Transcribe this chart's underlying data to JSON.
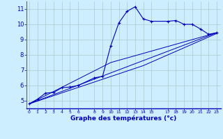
{
  "title": "Graphe des températures (°c)",
  "bg_color": "#cceeff",
  "line_color": "#0000bb",
  "grid_color": "#aacccc",
  "x_ticks": [
    0,
    1,
    2,
    3,
    4,
    5,
    6,
    8,
    9,
    10,
    11,
    12,
    13,
    14,
    15,
    17,
    18,
    19,
    20,
    21,
    22,
    23
  ],
  "ylim": [
    4.5,
    11.5
  ],
  "xlim": [
    -0.3,
    23.5
  ],
  "yticks": [
    5,
    6,
    7,
    8,
    9,
    10,
    11
  ],
  "main_data": [
    [
      0,
      4.8
    ],
    [
      1,
      5.1
    ],
    [
      2,
      5.5
    ],
    [
      3,
      5.55
    ],
    [
      4,
      5.85
    ],
    [
      5,
      5.9
    ],
    [
      6,
      6.0
    ],
    [
      8,
      6.5
    ],
    [
      9,
      6.6
    ],
    [
      10,
      8.6
    ],
    [
      11,
      10.1
    ],
    [
      12,
      10.85
    ],
    [
      13,
      11.15
    ],
    [
      14,
      10.35
    ],
    [
      15,
      10.2
    ],
    [
      17,
      10.2
    ],
    [
      18,
      10.25
    ],
    [
      19,
      10.0
    ],
    [
      20,
      10.0
    ],
    [
      21,
      9.7
    ],
    [
      22,
      9.35
    ],
    [
      23,
      9.45
    ]
  ],
  "trend_line1": [
    [
      0,
      4.8
    ],
    [
      23,
      9.45
    ]
  ],
  "trend_line2": [
    [
      0,
      4.8
    ],
    [
      10,
      7.5
    ],
    [
      23,
      9.45
    ]
  ],
  "trend_line3": [
    [
      0,
      4.8
    ],
    [
      14,
      7.3
    ],
    [
      23,
      9.4
    ]
  ]
}
